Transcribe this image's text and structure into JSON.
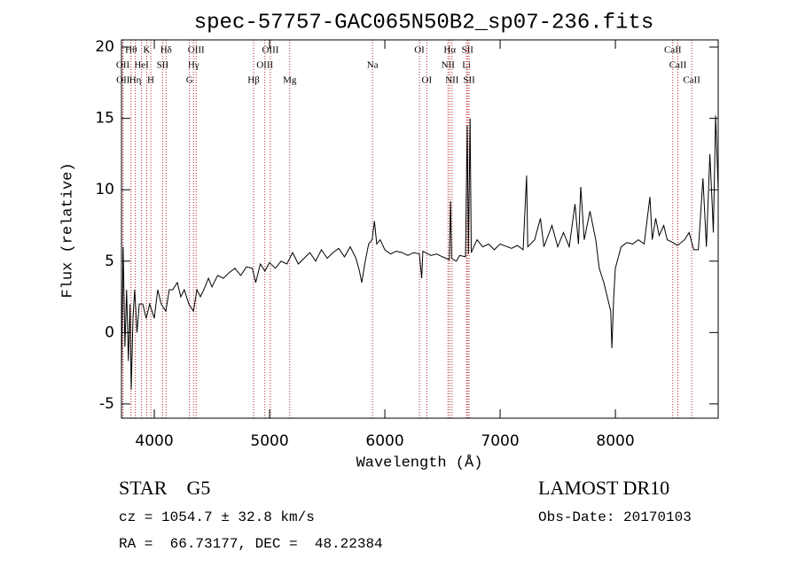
{
  "chart_data": {
    "type": "line",
    "title": "spec-57757-GAC065N50B2_sp07-236.fits",
    "x_label": "Wavelength (Å)",
    "y_label": "Flux (relative)",
    "color": "#000000",
    "line_color": "#b22222",
    "xlim": [
      3715,
      8892
    ],
    "ylim": [
      -6,
      20.5
    ],
    "xticks": [
      4000,
      5000,
      6000,
      7000,
      8000
    ],
    "yticks": [
      -5,
      0,
      5,
      10,
      15,
      20
    ],
    "x": [
      3715,
      3730,
      3745,
      3760,
      3775,
      3790,
      3800,
      3815,
      3830,
      3850,
      3870,
      3900,
      3930,
      3960,
      4000,
      4030,
      4060,
      4100,
      4130,
      4160,
      4200,
      4230,
      4260,
      4300,
      4340,
      4370,
      4400,
      4430,
      4470,
      4500,
      4550,
      4600,
      4650,
      4700,
      4750,
      4800,
      4850,
      4880,
      4920,
      4960,
      5000,
      5050,
      5100,
      5150,
      5200,
      5250,
      5300,
      5350,
      5400,
      5450,
      5500,
      5550,
      5600,
      5650,
      5700,
      5750,
      5780,
      5800,
      5830,
      5860,
      5890,
      5910,
      5930,
      5960,
      6000,
      6050,
      6100,
      6150,
      6200,
      6250,
      6300,
      6320,
      6330,
      6400,
      6450,
      6500,
      6560,
      6570,
      6580,
      6620,
      6650,
      6700,
      6715,
      6725,
      6740,
      6750,
      6800,
      6850,
      6900,
      6950,
      7000,
      7100,
      7150,
      7200,
      7230,
      7240,
      7300,
      7350,
      7380,
      7450,
      7500,
      7550,
      7600,
      7650,
      7680,
      7700,
      7730,
      7780,
      7830,
      7860,
      7900,
      7960,
      7970,
      7985,
      8000,
      8050,
      8100,
      8150,
      8200,
      8250,
      8300,
      8320,
      8350,
      8380,
      8420,
      8450,
      8500,
      8540,
      8600,
      8640,
      8680,
      8720,
      8760,
      8790,
      8820,
      8840,
      8850,
      8870,
      8892
    ],
    "values": [
      -3,
      6,
      -1,
      3,
      -2,
      2,
      -4,
      1,
      3,
      0,
      2,
      2,
      1,
      2,
      1,
      3,
      2,
      1.5,
      3,
      3,
      3.5,
      2.5,
      3,
      2,
      1.5,
      3,
      2.5,
      3,
      3.8,
      3.2,
      4,
      3.8,
      4.2,
      4.5,
      4,
      4.6,
      4.5,
      3.5,
      4.8,
      4.3,
      4.9,
      4.5,
      5,
      4.8,
      5.6,
      4.8,
      5.2,
      5.6,
      5,
      5.8,
      5.2,
      5.6,
      5.9,
      5.3,
      6,
      5.2,
      4.3,
      3.5,
      5,
      6.2,
      6.5,
      7.8,
      6.2,
      6.5,
      5.8,
      5.5,
      5.7,
      5.6,
      5.4,
      5.6,
      5.5,
      3.8,
      5.7,
      5.4,
      5.5,
      5.3,
      5.1,
      9.2,
      5.2,
      5,
      5.4,
      5.3,
      14.5,
      5.5,
      15,
      5.6,
      6.5,
      6,
      6.2,
      5.8,
      6.2,
      5.9,
      6.1,
      5.8,
      11,
      6,
      6.5,
      8,
      6,
      7.5,
      6,
      7,
      6,
      9,
      6.2,
      10.2,
      6.5,
      8.5,
      6.5,
      4.5,
      3.5,
      1.5,
      -1.1,
      2.4,
      4.5,
      6,
      6.3,
      6.2,
      6.5,
      6.2,
      9.5,
      6.5,
      8,
      6.8,
      7.5,
      6.5,
      6.3,
      6.1,
      6.5,
      7,
      5.8,
      5.8,
      10.8,
      6,
      12.5,
      9,
      7,
      15.2,
      10
    ],
    "spectral_lines": [
      [
        {
          "label": "Hθ",
          "wavelength": 3798
        },
        {
          "label": "K",
          "wavelength": 3934
        },
        {
          "label": "Hδ",
          "wavelength": 4102
        },
        {
          "label": "OIII",
          "wavelength": 4363
        },
        {
          "label": "OIII",
          "wavelength": 5007
        },
        {
          "label": "OI",
          "wavelength": 6300
        },
        {
          "label": "Hα",
          "wavelength": 6563
        },
        {
          "label": "SII",
          "wavelength": 6717
        },
        {
          "label": "CaII",
          "wavelength": 8498
        }
      ],
      [
        {
          "label": "OII",
          "wavelength": 3727
        },
        {
          "label": "HeI",
          "wavelength": 3889
        },
        {
          "label": "SII",
          "wavelength": 4072
        },
        {
          "label": "Hγ",
          "wavelength": 4340
        },
        {
          "label": "OIII",
          "wavelength": 4959
        },
        {
          "label": "Na",
          "wavelength": 5893
        },
        {
          "label": "NII",
          "wavelength": 6548
        },
        {
          "label": "Li",
          "wavelength": 6708
        },
        {
          "label": "CaII",
          "wavelength": 8542
        }
      ],
      [
        {
          "label": "OII",
          "wavelength": 3729
        },
        {
          "label": "Hη",
          "wavelength": 3835
        },
        {
          "label": "H",
          "wavelength": 3969
        },
        {
          "label": "G",
          "wavelength": 4305
        },
        {
          "label": "Hβ",
          "wavelength": 4861
        },
        {
          "label": "Mg",
          "wavelength": 5175
        },
        {
          "label": "OI",
          "wavelength": 6364
        },
        {
          "label": "NII",
          "wavelength": 6583
        },
        {
          "label": "SII",
          "wavelength": 6731
        },
        {
          "label": "CaII",
          "wavelength": 8662
        }
      ]
    ],
    "info": {
      "class": "STAR    G5",
      "survey": "LAMOST DR10",
      "cz": "cz = 1054.7 ± 32.8 km/s",
      "date": "Obs-Date: 20170103",
      "coords": "RA =  66.73177, DEC =  48.22384"
    }
  }
}
